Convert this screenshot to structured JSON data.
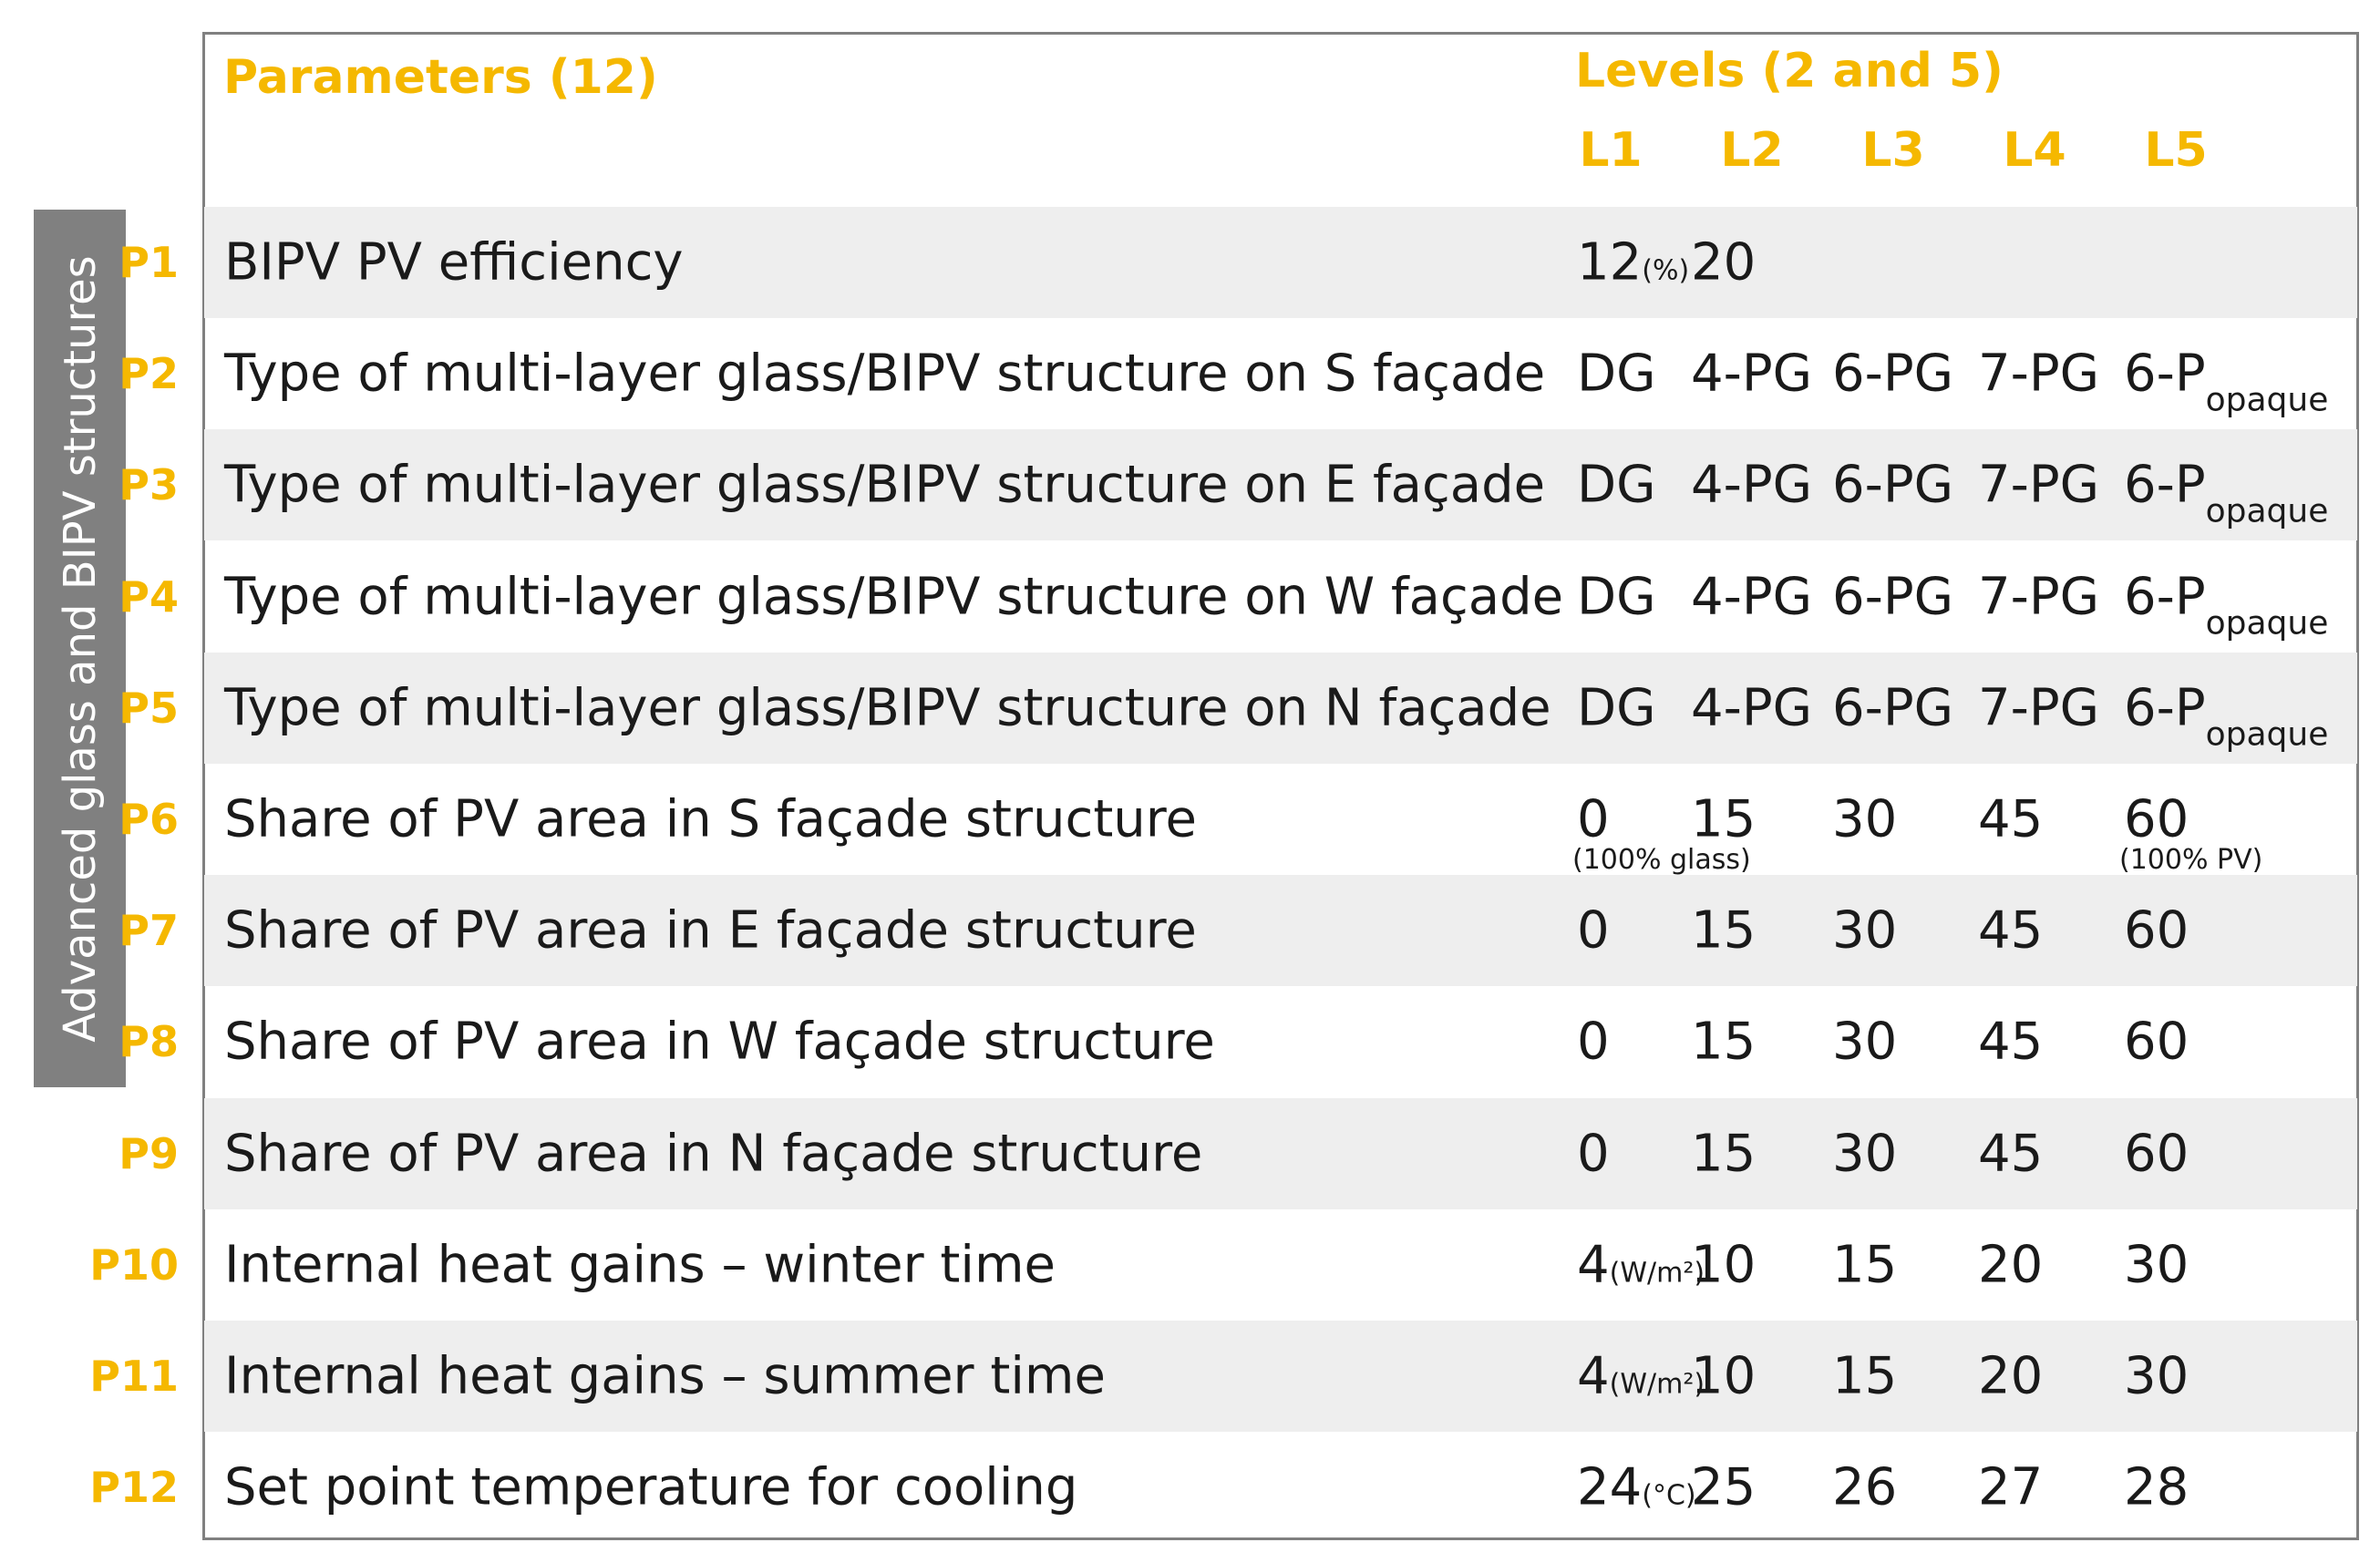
{
  "header": {
    "parameters": "Parameters (12)",
    "levels": "Levels (2 and 5)",
    "level_labels": [
      "L1",
      "L2",
      "L3",
      "L4",
      "L5"
    ]
  },
  "side_label": "Advanced glass and BIPV structures",
  "colors": {
    "accent": "#f5b800",
    "side_bar": "#808080",
    "row_shade": "#eeeeee",
    "border": "#808080"
  },
  "rows": [
    {
      "id": "P1",
      "name": "BIPV PV efficiency",
      "l1": "12",
      "l1_unit": "(%)",
      "l2": "20",
      "l3": "",
      "l4": "",
      "l5": ""
    },
    {
      "id": "P2",
      "name": "Type of multi-layer glass/BIPV structure on S façade",
      "l1": "DG",
      "l2": "4-PG",
      "l3": "6-PG",
      "l4": "7-PG",
      "l5": "6-P",
      "l5_sub": "opaque"
    },
    {
      "id": "P3",
      "name": "Type of multi-layer glass/BIPV structure on E façade",
      "l1": "DG",
      "l2": "4-PG",
      "l3": "6-PG",
      "l4": "7-PG",
      "l5": "6-P",
      "l5_sub": "opaque"
    },
    {
      "id": "P4",
      "name": "Type of multi-layer glass/BIPV structure on W façade",
      "l1": "DG",
      "l2": "4-PG",
      "l3": "6-PG",
      "l4": "7-PG",
      "l5": "6-P",
      "l5_sub": "opaque"
    },
    {
      "id": "P5",
      "name": "Type of multi-layer glass/BIPV structure on N façade",
      "l1": "DG",
      "l2": "4-PG",
      "l3": "6-PG",
      "l4": "7-PG",
      "l5": "6-P",
      "l5_sub": "opaque"
    },
    {
      "id": "P6",
      "name": "Share of PV area in S façade structure",
      "l1": "0",
      "l2": "15",
      "l3": "30",
      "l4": "45",
      "l5": "60",
      "l1_note": "(100% glass)",
      "l5_note": "(100% PV)"
    },
    {
      "id": "P7",
      "name": "Share of PV area in E façade structure",
      "l1": "0",
      "l2": "15",
      "l3": "30",
      "l4": "45",
      "l5": "60"
    },
    {
      "id": "P8",
      "name": "Share of PV area in W façade structure",
      "l1": "0",
      "l2": "15",
      "l3": "30",
      "l4": "45",
      "l5": "60"
    },
    {
      "id": "P9",
      "name": "Share of PV area in N façade structure",
      "l1": "0",
      "l2": "15",
      "l3": "30",
      "l4": "45",
      "l5": "60"
    },
    {
      "id": "P10",
      "name": "Internal heat gains – winter time",
      "l1": "4",
      "l1_unit": "(W/m²)",
      "l2": "10",
      "l3": "15",
      "l4": "20",
      "l5": "30"
    },
    {
      "id": "P11",
      "name": "Internal heat gains – summer time",
      "l1": "4",
      "l1_unit": "(W/m²)",
      "l2": "10",
      "l3": "15",
      "l4": "20",
      "l5": "30"
    },
    {
      "id": "P12",
      "name": "Set point temperature for cooling",
      "l1": "24",
      "l1_unit": "(°C)",
      "l2": "25",
      "l3": "26",
      "l4": "27",
      "l5": "28"
    }
  ]
}
